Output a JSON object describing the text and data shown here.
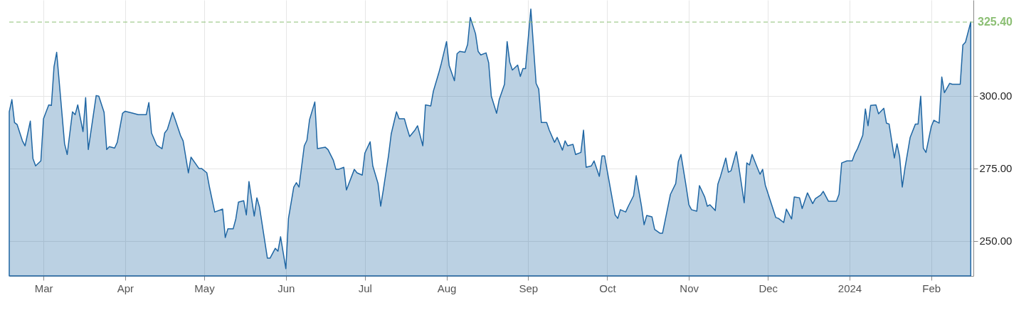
{
  "chart_data": {
    "type": "area",
    "x": [
      "2023-02-16",
      "2023-02-17",
      "2023-02-18",
      "2023-02-19",
      "2023-02-21",
      "2023-02-22",
      "2023-02-24",
      "2023-02-25",
      "2023-02-26",
      "2023-02-28",
      "2023-03-01",
      "2023-03-03",
      "2023-03-04",
      "2023-03-05",
      "2023-03-06",
      "2023-03-09",
      "2023-03-10",
      "2023-03-12",
      "2023-03-13",
      "2023-03-14",
      "2023-03-16",
      "2023-03-17",
      "2023-03-18",
      "2023-03-21",
      "2023-03-22",
      "2023-03-24",
      "2023-03-25",
      "2023-03-26",
      "2023-03-28",
      "2023-03-29",
      "2023-03-31",
      "2023-04-01",
      "2023-04-04",
      "2023-04-06",
      "2023-04-09",
      "2023-04-10",
      "2023-04-11",
      "2023-04-13",
      "2023-04-15",
      "2023-04-16",
      "2023-04-17",
      "2023-04-19",
      "2023-04-20",
      "2023-04-22",
      "2023-04-23",
      "2023-04-25",
      "2023-04-26",
      "2023-04-29",
      "2023-04-30",
      "2023-05-02",
      "2023-05-03",
      "2023-05-05",
      "2023-05-08",
      "2023-05-09",
      "2023-05-10",
      "2023-05-12",
      "2023-05-13",
      "2023-05-14",
      "2023-05-16",
      "2023-05-17",
      "2023-05-18",
      "2023-05-20",
      "2023-05-21",
      "2023-05-22",
      "2023-05-25",
      "2023-05-26",
      "2023-05-28",
      "2023-05-29",
      "2023-05-30",
      "2023-06-01",
      "2023-06-02",
      "2023-06-04",
      "2023-06-05",
      "2023-06-06",
      "2023-06-08",
      "2023-06-09",
      "2023-06-10",
      "2023-06-12",
      "2023-06-13",
      "2023-06-16",
      "2023-06-17",
      "2023-06-19",
      "2023-06-20",
      "2023-06-21",
      "2023-06-23",
      "2023-06-24",
      "2023-06-27",
      "2023-06-28",
      "2023-06-30",
      "2023-07-01",
      "2023-07-03",
      "2023-07-04",
      "2023-07-06",
      "2023-07-07",
      "2023-07-08",
      "2023-07-10",
      "2023-07-11",
      "2023-07-13",
      "2023-07-14",
      "2023-07-16",
      "2023-07-17",
      "2023-07-18",
      "2023-07-20",
      "2023-07-21",
      "2023-07-23",
      "2023-07-24",
      "2023-07-26",
      "2023-07-27",
      "2023-07-29",
      "2023-07-30",
      "2023-08-01",
      "2023-08-02",
      "2023-08-04",
      "2023-08-05",
      "2023-08-06",
      "2023-08-08",
      "2023-08-09",
      "2023-08-10",
      "2023-08-12",
      "2023-08-13",
      "2023-08-14",
      "2023-08-16",
      "2023-08-17",
      "2023-08-18",
      "2023-08-20",
      "2023-08-21",
      "2023-08-23",
      "2023-08-24",
      "2023-08-25",
      "2023-08-26",
      "2023-08-28",
      "2023-08-29",
      "2023-08-30",
      "2023-08-31",
      "2023-09-02",
      "2023-09-04",
      "2023-09-05",
      "2023-09-06",
      "2023-09-08",
      "2023-09-09",
      "2023-09-11",
      "2023-09-12",
      "2023-09-14",
      "2023-09-15",
      "2023-09-16",
      "2023-09-18",
      "2023-09-19",
      "2023-09-21",
      "2023-09-22",
      "2023-09-23",
      "2023-09-25",
      "2023-09-26",
      "2023-09-28",
      "2023-09-29",
      "2023-09-30",
      "2023-10-04",
      "2023-10-05",
      "2023-10-06",
      "2023-10-08",
      "2023-10-09",
      "2023-10-11",
      "2023-10-12",
      "2023-10-14",
      "2023-10-15",
      "2023-10-16",
      "2023-10-18",
      "2023-10-19",
      "2023-10-21",
      "2023-10-22",
      "2023-10-25",
      "2023-10-27",
      "2023-10-28",
      "2023-10-29",
      "2023-10-31",
      "2023-11-01",
      "2023-11-02",
      "2023-11-04",
      "2023-11-05",
      "2023-11-07",
      "2023-11-08",
      "2023-11-09",
      "2023-11-11",
      "2023-11-12",
      "2023-11-13",
      "2023-11-15",
      "2023-11-16",
      "2023-11-17",
      "2023-11-19",
      "2023-11-20",
      "2023-11-22",
      "2023-11-23",
      "2023-11-24",
      "2023-11-25",
      "2023-11-27",
      "2023-11-28",
      "2023-11-29",
      "2023-11-30",
      "2023-12-04",
      "2023-12-05",
      "2023-12-07",
      "2023-12-08",
      "2023-12-10",
      "2023-12-11",
      "2023-12-13",
      "2023-12-14",
      "2023-12-16",
      "2023-12-18",
      "2023-12-19",
      "2023-12-21",
      "2023-12-22",
      "2023-12-24",
      "2023-12-27",
      "2023-12-28",
      "2023-12-29",
      "2023-12-31",
      "2024-01-02",
      "2024-01-03",
      "2024-01-04",
      "2024-01-06",
      "2024-01-07",
      "2024-01-08",
      "2024-01-09",
      "2024-01-11",
      "2024-01-12",
      "2024-01-14",
      "2024-01-15",
      "2024-01-16",
      "2024-01-18",
      "2024-01-19",
      "2024-01-20",
      "2024-01-21",
      "2024-01-22",
      "2024-01-24",
      "2024-01-26",
      "2024-01-27",
      "2024-01-28",
      "2024-01-29",
      "2024-01-30",
      "2024-02-01",
      "2024-02-02",
      "2024-02-04",
      "2024-02-05",
      "2024-02-06",
      "2024-02-08",
      "2024-02-09",
      "2024-02-12",
      "2024-02-13",
      "2024-02-14",
      "2024-02-16"
    ],
    "series": [
      {
        "color": "#1f66a3",
        "values": [
          294.5,
          298.7,
          290.8,
          290.1,
          284.5,
          282.8,
          291.3,
          278.4,
          275.9,
          277.6,
          292.1,
          296.9,
          296.7,
          310.1,
          315.0,
          283.5,
          279.8,
          294.5,
          293.5,
          296.9,
          287.7,
          299.4,
          281.5,
          300.1,
          299.9,
          294.3,
          281.5,
          282.5,
          282.0,
          284.0,
          294.0,
          294.7,
          294.0,
          293.5,
          293.5,
          297.7,
          287.2,
          283.0,
          281.8,
          287.2,
          288.4,
          294.3,
          291.8,
          286.4,
          284.5,
          273.5,
          278.9,
          275.0,
          275.0,
          273.5,
          268.6,
          260.0,
          261.0,
          251.2,
          254.2,
          254.2,
          257.6,
          263.4,
          263.9,
          259.0,
          270.5,
          258.6,
          264.9,
          261.7,
          244.1,
          244.1,
          247.5,
          246.5,
          251.5,
          240.5,
          257.8,
          268.6,
          270.1,
          268.6,
          282.8,
          284.7,
          291.8,
          297.9,
          281.8,
          282.3,
          281.5,
          277.9,
          274.7,
          274.7,
          275.4,
          267.6,
          274.7,
          273.5,
          272.7,
          280.3,
          284.2,
          275.9,
          269.8,
          262.0,
          267.6,
          279.6,
          286.9,
          294.5,
          292.1,
          292.1,
          288.9,
          286.0,
          288.2,
          289.7,
          282.8,
          296.9,
          296.5,
          301.6,
          307.7,
          311.1,
          318.7,
          310.4,
          305.2,
          314.5,
          315.3,
          315.0,
          317.7,
          327.0,
          321.4,
          315.3,
          314.1,
          314.8,
          311.4,
          299.9,
          294.0,
          298.7,
          304.0,
          318.7,
          311.6,
          308.9,
          310.6,
          306.7,
          309.4,
          309.4,
          329.9,
          304.3,
          302.3,
          290.8,
          290.8,
          288.2,
          284.0,
          285.7,
          281.3,
          284.5,
          282.8,
          283.3,
          279.8,
          280.5,
          288.2,
          275.4,
          275.9,
          277.6,
          272.3,
          279.3,
          279.3,
          259.0,
          257.8,
          260.8,
          260.0,
          262.0,
          265.6,
          272.5,
          262.0,
          255.6,
          258.8,
          258.3,
          254.0,
          252.7,
          252.7,
          266.1,
          269.8,
          277.4,
          279.8,
          268.6,
          262.5,
          260.8,
          260.3,
          269.1,
          265.2,
          262.0,
          262.5,
          260.5,
          269.6,
          272.3,
          278.6,
          273.7,
          274.2,
          280.8,
          275.4,
          263.2,
          276.9,
          276.2,
          279.8,
          275.2,
          273.0,
          274.7,
          269.3,
          258.1,
          257.8,
          256.4,
          261.0,
          257.6,
          265.2,
          264.9,
          261.2,
          266.6,
          262.9,
          264.6,
          265.8,
          267.1,
          263.7,
          263.7,
          266.1,
          276.9,
          277.6,
          277.6,
          280.1,
          281.8,
          286.4,
          295.5,
          289.7,
          296.7,
          296.9,
          293.8,
          295.7,
          290.6,
          290.3,
          278.6,
          283.5,
          279.1,
          268.6,
          275.0,
          285.7,
          290.3,
          290.3,
          299.9,
          282.0,
          280.5,
          289.4,
          291.6,
          290.6,
          306.5,
          301.1,
          304.3,
          304.0,
          304.0,
          317.5,
          318.5,
          325.4
        ]
      }
    ],
    "xlim": [
      "2023-02-16",
      "2024-02-17"
    ],
    "xticks": [
      {
        "value": "2023-03-01",
        "label": "Mar"
      },
      {
        "value": "2023-04-01",
        "label": "Apr"
      },
      {
        "value": "2023-05-01",
        "label": "May"
      },
      {
        "value": "2023-06-01",
        "label": "Jun"
      },
      {
        "value": "2023-07-01",
        "label": "Jul"
      },
      {
        "value": "2023-08-01",
        "label": "Aug"
      },
      {
        "value": "2023-09-01",
        "label": "Sep"
      },
      {
        "value": "2023-10-01",
        "label": "Oct"
      },
      {
        "value": "2023-11-01",
        "label": "Nov"
      },
      {
        "value": "2023-12-01",
        "label": "Dec"
      },
      {
        "value": "2024-01-01",
        "label": "2024"
      },
      {
        "value": "2024-02-01",
        "label": "Feb"
      }
    ],
    "ylim": [
      238,
      333
    ],
    "yticks": [
      {
        "value": 250,
        "label": "250.00"
      },
      {
        "value": 275,
        "label": "275.00"
      },
      {
        "value": 300,
        "label": "300.00"
      }
    ],
    "grid": true,
    "ref_lines": [
      {
        "axis": "y",
        "value": 325.4,
        "label": "325.40",
        "color": "#8cbf74",
        "line_style": "dashed"
      }
    ]
  }
}
